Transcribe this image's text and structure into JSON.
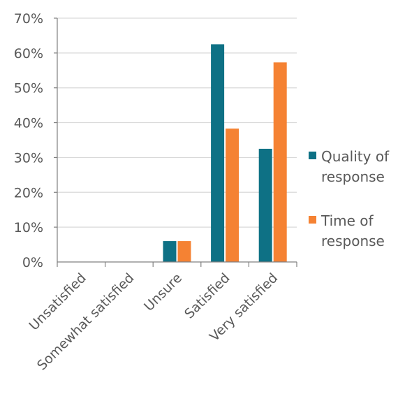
{
  "chart_data": {
    "type": "bar",
    "categories": [
      "Unsatisfied",
      "Somewhat satisfied",
      "Unsure",
      "Satisfied",
      "Very satisfied"
    ],
    "series": [
      {
        "name": "Quality of response",
        "color": "#0E7185",
        "values": [
          0,
          0,
          6,
          62.5,
          32.5
        ]
      },
      {
        "name": "Time of response",
        "color": "#F58233",
        "values": [
          0,
          0,
          6,
          38.3,
          57.3
        ]
      }
    ],
    "ylim": [
      0,
      70
    ],
    "yticks": [
      0,
      10,
      20,
      30,
      40,
      50,
      60,
      70
    ],
    "ytick_labels": [
      "0%",
      "10%",
      "20%",
      "30%",
      "40%",
      "50%",
      "60%",
      "70%"
    ],
    "grid": true,
    "legend": {
      "position": "right",
      "entries": [
        [
          "Quality of",
          "response"
        ],
        [
          "Time of",
          "response"
        ]
      ]
    },
    "title": "",
    "xlabel": "",
    "ylabel": ""
  }
}
